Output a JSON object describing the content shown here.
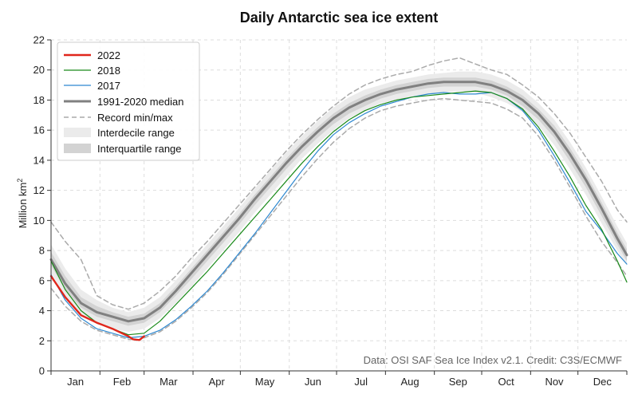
{
  "chart_data": {
    "type": "line",
    "title": "Daily Antarctic sea ice extent",
    "ylabel": "Million km",
    "ylabel_sup": "2",
    "ylim": [
      0,
      22
    ],
    "yticks": [
      "0",
      "2",
      "4",
      "6",
      "8",
      "10",
      "12",
      "14",
      "16",
      "18",
      "20",
      "22"
    ],
    "months": [
      "Jan",
      "Feb",
      "Mar",
      "Apr",
      "May",
      "Jun",
      "Jul",
      "Aug",
      "Sep",
      "Oct",
      "Nov",
      "Dec"
    ],
    "x_unit": "day of year",
    "xlim": [
      1,
      366
    ],
    "grid": true,
    "legend_position": "top-left",
    "credit": "Data: OSI SAF Sea Ice Index v2.1. Credit: C3S/ECMWF",
    "colors": {
      "series_2022": "#e0261b",
      "series_2018": "#1a8a1a",
      "series_2017": "#2e88d0",
      "median": "#808080",
      "record": "#aaaaaa",
      "interdecile": "#ebebeb",
      "interquartile": "#d3d3d3"
    },
    "legend": {
      "s2022": "2022",
      "s2018": "2018",
      "s2017": "2017",
      "median": "1991-2020 median",
      "record": "Record min/max",
      "interdecile": "Interdecile range",
      "interquartile": "Interquartile range"
    },
    "series": [
      {
        "name": "2022",
        "x": [
          1,
          10,
          20,
          30,
          40,
          50,
          53,
          57,
          60
        ],
        "y": [
          6.3,
          4.9,
          3.7,
          3.2,
          2.8,
          2.3,
          2.1,
          2.05,
          2.3
        ]
      },
      {
        "name": "2018",
        "x": [
          1,
          10,
          20,
          30,
          40,
          50,
          60,
          70,
          80,
          90,
          100,
          110,
          120,
          130,
          140,
          150,
          160,
          170,
          180,
          190,
          200,
          210,
          220,
          230,
          240,
          250,
          260,
          270,
          280,
          290,
          300,
          310,
          320,
          330,
          340,
          350,
          360,
          366
        ],
        "y": [
          7.3,
          5.4,
          4.0,
          3.2,
          2.8,
          2.4,
          2.5,
          3.3,
          4.4,
          5.5,
          6.6,
          7.8,
          9.0,
          10.2,
          11.4,
          12.6,
          13.8,
          14.9,
          15.9,
          16.7,
          17.3,
          17.7,
          18.0,
          18.2,
          18.3,
          18.4,
          18.5,
          18.6,
          18.5,
          18.1,
          17.4,
          16.2,
          14.6,
          12.9,
          11.0,
          9.4,
          7.3,
          5.9
        ]
      },
      {
        "name": "2017",
        "x": [
          1,
          10,
          20,
          30,
          40,
          50,
          60,
          70,
          80,
          90,
          100,
          110,
          120,
          130,
          140,
          150,
          160,
          170,
          180,
          190,
          200,
          210,
          220,
          230,
          240,
          250,
          260,
          270,
          280,
          290,
          300,
          310,
          320,
          330,
          340,
          350,
          360,
          366
        ],
        "y": [
          6.4,
          4.7,
          3.5,
          2.8,
          2.5,
          2.2,
          2.3,
          2.7,
          3.4,
          4.3,
          5.3,
          6.5,
          7.8,
          9.1,
          10.5,
          11.9,
          13.3,
          14.6,
          15.7,
          16.5,
          17.1,
          17.6,
          17.9,
          18.2,
          18.4,
          18.5,
          18.4,
          18.4,
          18.5,
          18.1,
          17.3,
          16.0,
          14.3,
          12.5,
          10.6,
          9.3,
          7.8,
          7.1
        ]
      },
      {
        "name": "1991-2020 median",
        "x": [
          1,
          10,
          20,
          30,
          40,
          50,
          60,
          70,
          80,
          90,
          100,
          110,
          120,
          130,
          140,
          150,
          160,
          170,
          180,
          190,
          200,
          210,
          220,
          230,
          240,
          250,
          260,
          270,
          280,
          290,
          300,
          310,
          320,
          330,
          340,
          350,
          360,
          366
        ],
        "y": [
          7.4,
          5.8,
          4.5,
          3.9,
          3.6,
          3.3,
          3.5,
          4.2,
          5.3,
          6.5,
          7.7,
          8.9,
          10.1,
          11.4,
          12.6,
          13.8,
          14.9,
          15.9,
          16.8,
          17.5,
          18.0,
          18.4,
          18.7,
          18.9,
          19.1,
          19.2,
          19.2,
          19.2,
          19.0,
          18.6,
          18.0,
          17.1,
          15.9,
          14.4,
          12.7,
          10.8,
          8.8,
          7.7
        ]
      },
      {
        "name": "Record max",
        "x": [
          1,
          10,
          20,
          30,
          40,
          50,
          60,
          70,
          80,
          90,
          100,
          110,
          120,
          130,
          140,
          150,
          160,
          170,
          180,
          190,
          200,
          210,
          220,
          230,
          240,
          250,
          260,
          270,
          280,
          290,
          300,
          310,
          320,
          330,
          340,
          350,
          360,
          366
        ],
        "y": [
          9.9,
          8.6,
          7.4,
          5.0,
          4.4,
          4.1,
          4.5,
          5.3,
          6.3,
          7.5,
          8.6,
          9.8,
          11.0,
          12.2,
          13.4,
          14.6,
          15.7,
          16.7,
          17.6,
          18.4,
          19.0,
          19.4,
          19.7,
          19.9,
          20.3,
          20.6,
          20.8,
          20.4,
          20.0,
          19.7,
          19.0,
          18.2,
          17.1,
          15.8,
          14.2,
          12.6,
          10.7,
          9.9
        ]
      },
      {
        "name": "Record min",
        "x": [
          1,
          10,
          20,
          30,
          40,
          50,
          57,
          60,
          70,
          80,
          90,
          100,
          110,
          120,
          130,
          140,
          150,
          160,
          170,
          180,
          190,
          200,
          210,
          220,
          230,
          240,
          250,
          260,
          270,
          280,
          290,
          300,
          310,
          320,
          330,
          340,
          350,
          360,
          366
        ],
        "y": [
          5.5,
          4.3,
          3.3,
          2.7,
          2.4,
          2.1,
          2.05,
          2.2,
          2.6,
          3.3,
          4.2,
          5.2,
          6.4,
          7.7,
          9.0,
          10.3,
          11.6,
          12.9,
          14.1,
          15.2,
          16.1,
          16.8,
          17.3,
          17.6,
          17.8,
          18.0,
          18.1,
          18.0,
          17.9,
          17.8,
          17.4,
          16.8,
          15.6,
          14.0,
          12.2,
          10.3,
          8.6,
          7.2,
          6.3
        ]
      }
    ],
    "bands": [
      {
        "name": "Interdecile range",
        "x": [
          1,
          10,
          20,
          30,
          40,
          50,
          60,
          70,
          80,
          90,
          100,
          110,
          120,
          130,
          140,
          150,
          160,
          170,
          180,
          190,
          200,
          210,
          220,
          230,
          240,
          250,
          260,
          270,
          280,
          290,
          300,
          310,
          320,
          330,
          340,
          350,
          360,
          366
        ],
        "low": [
          6.5,
          5.0,
          3.8,
          3.1,
          2.8,
          2.6,
          2.8,
          3.5,
          4.5,
          5.6,
          6.8,
          8.0,
          9.2,
          10.5,
          11.7,
          12.9,
          14.1,
          15.1,
          16.0,
          16.8,
          17.3,
          17.8,
          18.0,
          18.2,
          18.4,
          18.5,
          18.6,
          18.5,
          18.2,
          17.8,
          17.2,
          16.3,
          15.0,
          13.4,
          11.7,
          9.8,
          8.0,
          7.0
        ],
        "high": [
          8.4,
          6.8,
          5.4,
          4.7,
          4.2,
          3.9,
          4.2,
          4.9,
          6.0,
          7.2,
          8.4,
          9.6,
          10.8,
          12.1,
          13.3,
          14.5,
          15.6,
          16.6,
          17.5,
          18.2,
          18.7,
          19.0,
          19.3,
          19.5,
          19.7,
          19.8,
          19.9,
          19.9,
          19.7,
          19.3,
          18.7,
          17.8,
          16.7,
          15.2,
          13.5,
          11.6,
          9.6,
          8.5
        ]
      },
      {
        "name": "Interquartile range",
        "x": [
          1,
          10,
          20,
          30,
          40,
          50,
          60,
          70,
          80,
          90,
          100,
          110,
          120,
          130,
          140,
          150,
          160,
          170,
          180,
          190,
          200,
          210,
          220,
          230,
          240,
          250,
          260,
          270,
          280,
          290,
          300,
          310,
          320,
          330,
          340,
          350,
          360,
          366
        ],
        "low": [
          7.0,
          5.4,
          4.2,
          3.6,
          3.3,
          3.0,
          3.2,
          3.9,
          5.0,
          6.1,
          7.3,
          8.5,
          9.7,
          11.0,
          12.2,
          13.4,
          14.5,
          15.5,
          16.4,
          17.1,
          17.6,
          18.1,
          18.4,
          18.6,
          18.8,
          18.9,
          18.9,
          18.9,
          18.7,
          18.3,
          17.6,
          16.7,
          15.5,
          13.9,
          12.2,
          10.3,
          8.4,
          7.3
        ],
        "high": [
          7.9,
          6.3,
          4.9,
          4.3,
          3.9,
          3.6,
          3.8,
          4.5,
          5.6,
          6.8,
          8.0,
          9.2,
          10.4,
          11.7,
          12.9,
          14.1,
          15.2,
          16.2,
          17.1,
          17.8,
          18.3,
          18.7,
          19.0,
          19.2,
          19.4,
          19.5,
          19.5,
          19.5,
          19.3,
          18.9,
          18.3,
          17.4,
          16.3,
          14.8,
          13.1,
          11.2,
          9.2,
          8.1
        ]
      }
    ]
  }
}
